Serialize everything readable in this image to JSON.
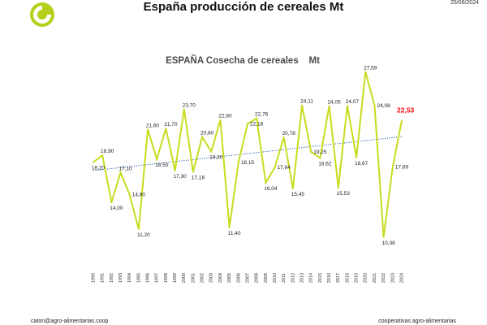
{
  "header": {
    "title": "España producción de cereales Mt",
    "date": "25/06/2024"
  },
  "footer": {
    "email": "caton@agro-alimentarias.coop",
    "org": "cooperativas agro-alimentarias"
  },
  "colors": {
    "series_line": "#c8dc1e",
    "trend_line": "#2b5fa8",
    "highlight_label": "#ff0000",
    "logo": "#b5cf1a"
  },
  "icons": {
    "logo": "cooperativas-logo-icon"
  },
  "chart_data": {
    "type": "line",
    "title": "ESPAÑA Cosecha de cereales    Mt",
    "xlabel": "",
    "ylabel": "",
    "ylim": [
      8,
      30
    ],
    "grid": false,
    "legend": "none",
    "categories": [
      "1990",
      "1991",
      "1992",
      "1993",
      "1994",
      "1995",
      "1996",
      "1997",
      "1998",
      "1999",
      "2000",
      "2001",
      "2002",
      "2003",
      "2004",
      "2005",
      "2006",
      "2007",
      "2008",
      "2009",
      "2010",
      "2011",
      "2012",
      "2013",
      "2014",
      "2015",
      "2016",
      "2017",
      "2018",
      "2019",
      "2020",
      "2021",
      "2022",
      "2023",
      "2024"
    ],
    "series": [
      {
        "values": [
          18.2,
          18.9,
          14.0,
          17.1,
          14.8,
          11.2,
          21.6,
          18.5,
          21.7,
          17.3,
          23.7,
          17.18,
          20.8,
          19.3,
          22.6,
          11.4,
          18.15,
          22.18,
          22.76,
          16.04,
          17.64,
          20.78,
          15.45,
          24.11,
          19.25,
          18.62,
          24.05,
          15.53,
          24.07,
          18.67,
          27.59,
          24.08,
          10.38,
          17.69,
          22.53
        ],
        "labels": [
          "18,20",
          "18,90",
          "14,00",
          "17,10",
          "14,80",
          "11,20",
          "21,60",
          "18,50",
          "21,70",
          "17,30",
          "23,70",
          "17,18",
          "20,80",
          "19,30",
          "22,60",
          "11,40",
          "18,15",
          "22,18",
          "22,76",
          "16,04",
          "17,64",
          "20,78",
          "15,45",
          "24,11",
          "19,25",
          "18,62",
          "24,05",
          "15,53",
          "24,07",
          "18,67",
          "27,59",
          "24,08",
          "10,38",
          "17,69",
          "22,53"
        ]
      }
    ],
    "trendline": {
      "type": "linear",
      "style": "dotted"
    },
    "highlight_index": 34
  }
}
